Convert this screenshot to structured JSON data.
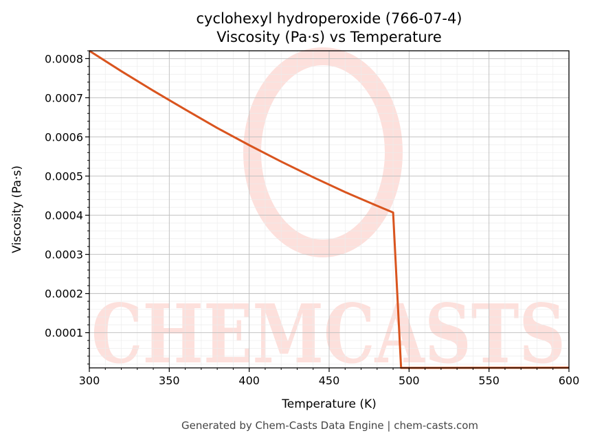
{
  "chart_data": {
    "type": "line",
    "title": "cyclohexyl hydroperoxide (766-07-4)",
    "subtitle": "Viscosity (Pa·s) vs Temperature",
    "xlabel": "Temperature (K)",
    "ylabel": "Viscosity (Pa·s)",
    "xlim": [
      300,
      600
    ],
    "ylim": [
      1e-05,
      0.00082
    ],
    "x_ticks": [
      300,
      350,
      400,
      450,
      500,
      550,
      600
    ],
    "y_ticks": [
      0.0001,
      0.0002,
      0.0003,
      0.0004,
      0.0005,
      0.0006,
      0.0007,
      0.0008
    ],
    "x_tick_labels": [
      "300",
      "350",
      "400",
      "450",
      "500",
      "550",
      "600"
    ],
    "y_tick_labels": [
      "0.0001",
      "0.0002",
      "0.0003",
      "0.0004",
      "0.0005",
      "0.0006",
      "0.0007",
      "0.0008"
    ],
    "grid": true,
    "line_color": "#d9541e",
    "series": [
      {
        "x": [
          300,
          320,
          340,
          360,
          380,
          400,
          420,
          440,
          460,
          480,
          490,
          495,
          500,
          550,
          600
        ],
        "y": [
          0.00082,
          0.000768,
          0.000718,
          0.00067,
          0.000623,
          0.000579,
          0.000537,
          0.000497,
          0.000459,
          0.000424,
          0.000407,
          1e-05,
          1e-05,
          1.02e-05,
          1.04e-05
        ]
      }
    ]
  },
  "watermark": "CHEMCASTS",
  "footer": "Generated by Chem-Casts Data Engine | chem-casts.com"
}
